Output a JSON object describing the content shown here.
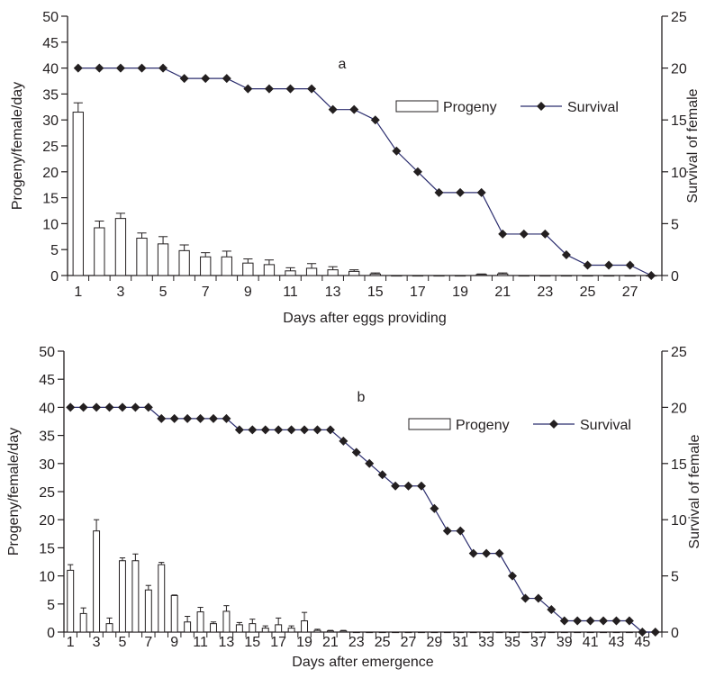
{
  "chart_data": [
    {
      "type": "bar",
      "panel_label": "a",
      "xlabel": "Days after eggs providing",
      "ylabel": "Progeny/female/day",
      "y2label": "Survival of female",
      "ylim": [
        0,
        50
      ],
      "y2lim": [
        0,
        25
      ],
      "yticks": [
        0,
        5,
        10,
        15,
        20,
        25,
        30,
        35,
        40,
        45,
        50
      ],
      "y2ticks": [
        0,
        5,
        10,
        15,
        20,
        25
      ],
      "x": [
        1,
        2,
        3,
        4,
        5,
        6,
        7,
        8,
        9,
        10,
        11,
        12,
        13,
        14,
        15,
        16,
        17,
        18,
        19,
        20,
        21,
        22,
        23,
        24,
        25,
        26,
        27,
        28
      ],
      "xtick_labels": [
        "1",
        "3",
        "5",
        "7",
        "9",
        "11",
        "13",
        "15",
        "17",
        "19",
        "21",
        "23",
        "25",
        "27"
      ],
      "legend": [
        "Progeny",
        "Survival"
      ],
      "legend_position": "top-right",
      "series": [
        {
          "name": "Progeny",
          "kind": "bar",
          "axis": "left",
          "values": [
            31.5,
            9.2,
            11,
            7.2,
            6.1,
            4.8,
            3.6,
            3.6,
            2.4,
            2.1,
            0.9,
            1.4,
            1.1,
            0.8,
            0.3,
            0,
            0,
            0,
            0,
            0.2,
            0.3,
            0,
            0,
            0,
            0,
            0,
            0,
            0
          ],
          "errors": [
            1.8,
            1.3,
            1,
            1,
            1.4,
            1.1,
            0.8,
            1.1,
            0.8,
            0.9,
            0.6,
            0.9,
            0.6,
            0.3,
            0.2,
            0,
            0,
            0,
            0,
            0.1,
            0.2,
            0,
            0,
            0,
            0,
            0,
            0,
            0
          ]
        },
        {
          "name": "Survival",
          "kind": "line",
          "axis": "right",
          "values": [
            20,
            20,
            20,
            20,
            20,
            19,
            19,
            19,
            18,
            18,
            18,
            18,
            16,
            16,
            15,
            12,
            10,
            8,
            8,
            8,
            4,
            4,
            4,
            2,
            1,
            1,
            1,
            0
          ]
        }
      ]
    },
    {
      "type": "bar",
      "panel_label": "b",
      "xlabel": "Days after emergence",
      "ylabel": "Progeny/female/day",
      "y2label": "Survival of female",
      "ylim": [
        0,
        50
      ],
      "y2lim": [
        0,
        25
      ],
      "yticks": [
        0,
        5,
        10,
        15,
        20,
        25,
        30,
        35,
        40,
        45,
        50
      ],
      "y2ticks": [
        0,
        5,
        10,
        15,
        20,
        25
      ],
      "x": [
        1,
        2,
        3,
        4,
        5,
        6,
        7,
        8,
        9,
        10,
        11,
        12,
        13,
        14,
        15,
        16,
        17,
        18,
        19,
        20,
        21,
        22,
        23,
        24,
        25,
        26,
        27,
        28,
        29,
        30,
        31,
        32,
        33,
        34,
        35,
        36,
        37,
        38,
        39,
        40,
        41,
        42,
        43,
        44,
        45,
        46
      ],
      "xtick_labels": [
        "1",
        "3",
        "5",
        "7",
        "9",
        "11",
        "13",
        "15",
        "17",
        "19",
        "21",
        "23",
        "25",
        "27",
        "29",
        "31",
        "33",
        "35",
        "37",
        "39",
        "41",
        "43",
        "45"
      ],
      "legend": [
        "Progeny",
        "Survival"
      ],
      "legend_position": "top-right",
      "series": [
        {
          "name": "Progeny",
          "kind": "bar",
          "axis": "left",
          "values": [
            11,
            3.3,
            18,
            1.5,
            12.7,
            12.7,
            7.5,
            12,
            6.5,
            1.8,
            3.6,
            1.5,
            3.7,
            1.3,
            1.5,
            0.7,
            1.3,
            0.7,
            2,
            0.3,
            0.2,
            0.2,
            0,
            0,
            0,
            0,
            0,
            0,
            0,
            0,
            0,
            0,
            0,
            0,
            0,
            0,
            0,
            0,
            0,
            0,
            0,
            0,
            0,
            0,
            0,
            0
          ],
          "errors": [
            1,
            1,
            2,
            1,
            0.5,
            1.2,
            0.8,
            0.4,
            0.1,
            1,
            0.8,
            0.3,
            1,
            0.4,
            0.8,
            0.4,
            1.2,
            0.4,
            1.5,
            0.2,
            0.1,
            0.1,
            0,
            0,
            0,
            0,
            0,
            0,
            0,
            0,
            0,
            0,
            0,
            0,
            0,
            0,
            0,
            0,
            0,
            0,
            0,
            0,
            0,
            0,
            0,
            0
          ]
        },
        {
          "name": "Survival",
          "kind": "line",
          "axis": "right",
          "values": [
            20,
            20,
            20,
            20,
            20,
            20,
            20,
            19,
            19,
            19,
            19,
            19,
            19,
            18,
            18,
            18,
            18,
            18,
            18,
            18,
            18,
            17,
            16,
            15,
            14,
            13,
            13,
            13,
            11,
            9,
            9,
            7,
            7,
            7,
            5,
            3,
            3,
            2,
            1,
            1,
            1,
            1,
            1,
            1,
            0,
            0
          ]
        }
      ]
    }
  ]
}
